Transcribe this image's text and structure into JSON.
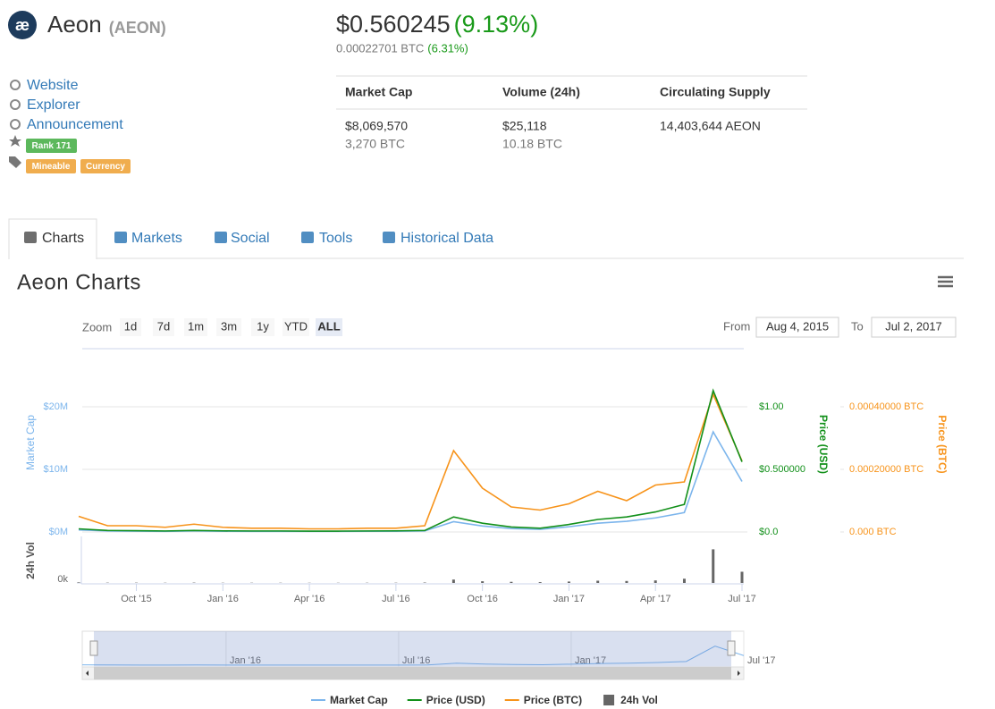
{
  "header": {
    "logo": "æ",
    "name": "Aeon",
    "symbol": "(AEON)",
    "price": "$0.560245",
    "change": "(9.13%)",
    "price_btc": "0.00022701 BTC",
    "change_btc": "(6.31%)"
  },
  "links": [
    "Website",
    "Explorer",
    "Announcement"
  ],
  "tags": {
    "rank": "Rank 171",
    "labels": [
      "Mineable",
      "Currency"
    ]
  },
  "stats": {
    "headers": [
      "Market Cap",
      "Volume (24h)",
      "Circulating Supply"
    ],
    "columns": [
      [
        "$8,069,570",
        "3,270 BTC"
      ],
      [
        "$25,118",
        "10.18 BTC"
      ],
      [
        "14,403,644 AEON"
      ]
    ]
  },
  "tabs": [
    "Charts",
    "Markets",
    "Social",
    "Tools",
    "Historical Data"
  ],
  "chart_data": {
    "type": "line",
    "title": "Aeon Charts",
    "zoom": {
      "label": "Zoom",
      "buttons": [
        "1d",
        "7d",
        "1m",
        "3m",
        "1y",
        "YTD",
        "ALL"
      ],
      "selected": 6
    },
    "range": {
      "from_label": "From",
      "from": "Aug 4, 2015",
      "to_label": "To",
      "to": "Jul 2, 2017"
    },
    "x": [
      "2015-08",
      "2015-09",
      "2015-10",
      "2015-11",
      "2015-12",
      "2016-01",
      "2016-02",
      "2016-03",
      "2016-04",
      "2016-05",
      "2016-06",
      "2016-07",
      "2016-08",
      "2016-09",
      "2016-10",
      "2016-11",
      "2016-12",
      "2017-01",
      "2017-02",
      "2017-03",
      "2017-04",
      "2017-05",
      "2017-06",
      "2017-07"
    ],
    "xlim": [
      "2015-08",
      "2017-07"
    ],
    "xticks": [
      {
        "value": "2015-10",
        "label": "Oct '15"
      },
      {
        "value": "2016-01",
        "label": "Jan '16"
      },
      {
        "value": "2016-04",
        "label": "Apr '16"
      },
      {
        "value": "2016-07",
        "label": "Jul '16"
      },
      {
        "value": "2016-10",
        "label": "Oct '16"
      },
      {
        "value": "2017-01",
        "label": "Jan '17"
      },
      {
        "value": "2017-04",
        "label": "Apr '17"
      },
      {
        "value": "2017-07",
        "label": "Jul '17"
      }
    ],
    "ylabel": "Market Cap",
    "ylim": [
      0,
      27000000
    ],
    "yticks": [
      {
        "value": 0,
        "label": "$0M"
      },
      {
        "value": 10000000,
        "label": "$10M"
      },
      {
        "value": 20000000,
        "label": "$20M"
      }
    ],
    "y2label": "Price (USD)",
    "y2lim": [
      0,
      1.35
    ],
    "y2ticks": [
      {
        "value": 0,
        "label": "$0.0"
      },
      {
        "value": 0.5,
        "label": "$0.500000"
      },
      {
        "value": 1,
        "label": "$1.00"
      }
    ],
    "y3label": "Price (BTC)",
    "y3lim": [
      0,
      0.00054
    ],
    "y3ticks": [
      {
        "value": 0,
        "label": "0.000 BTC"
      },
      {
        "value": 0.0002,
        "label": "0.00020000 BTC"
      },
      {
        "value": 0.0004,
        "label": "0.00040000 BTC"
      }
    ],
    "vol_label": "24h Vol",
    "vol_lim": [
      0,
      1500000
    ],
    "vol_ticks": [
      {
        "value": 0,
        "label": "0k"
      }
    ],
    "grid": true,
    "series": [
      {
        "name": "Market Cap",
        "color": "#7cb5ec",
        "axis": "y",
        "values": [
          320000,
          160000,
          130000,
          105000,
          160000,
          120000,
          105000,
          105000,
          95000,
          95000,
          110000,
          120000,
          165000,
          1650000,
          960000,
          550000,
          420000,
          840000,
          1400000,
          1700000,
          2250000,
          3100000,
          16000000,
          8069570
        ]
      },
      {
        "name": "Price (USD)",
        "color": "#12901a",
        "axis": "y2",
        "values": [
          0.025,
          0.012,
          0.01,
          0.008,
          0.012,
          0.009,
          0.008,
          0.008,
          0.007,
          0.007,
          0.008,
          0.009,
          0.012,
          0.12,
          0.07,
          0.04,
          0.03,
          0.06,
          0.1,
          0.12,
          0.16,
          0.22,
          1.13,
          0.560245
        ]
      },
      {
        "name": "Price (BTC)",
        "color": "#f7931a",
        "axis": "y3",
        "values": [
          5e-05,
          2e-05,
          2e-05,
          1.5e-05,
          2.5e-05,
          1.5e-05,
          1.2e-05,
          1.2e-05,
          1e-05,
          1e-05,
          1.2e-05,
          1.2e-05,
          2e-05,
          0.00026,
          0.00014,
          8e-05,
          7e-05,
          9e-05,
          0.00013,
          0.0001,
          0.00015,
          0.00016,
          0.00044,
          0.00022701
        ]
      },
      {
        "name": "24h Vol",
        "color": "#666666",
        "axis": "vol",
        "values": [
          20000,
          10000,
          10000,
          8000,
          12000,
          8000,
          8000,
          8000,
          7000,
          7000,
          8000,
          9000,
          15000,
          120000,
          60000,
          40000,
          30000,
          50000,
          80000,
          70000,
          90000,
          150000,
          1200000,
          400000
        ]
      }
    ],
    "navigator": {
      "xticks": [
        {
          "value": "2016-01",
          "label": "Jan '16"
        },
        {
          "value": "2016-07",
          "label": "Jul '16"
        },
        {
          "value": "2017-01",
          "label": "Jan '17"
        },
        {
          "value": "2017-07",
          "label": "Jul '17"
        }
      ]
    }
  }
}
